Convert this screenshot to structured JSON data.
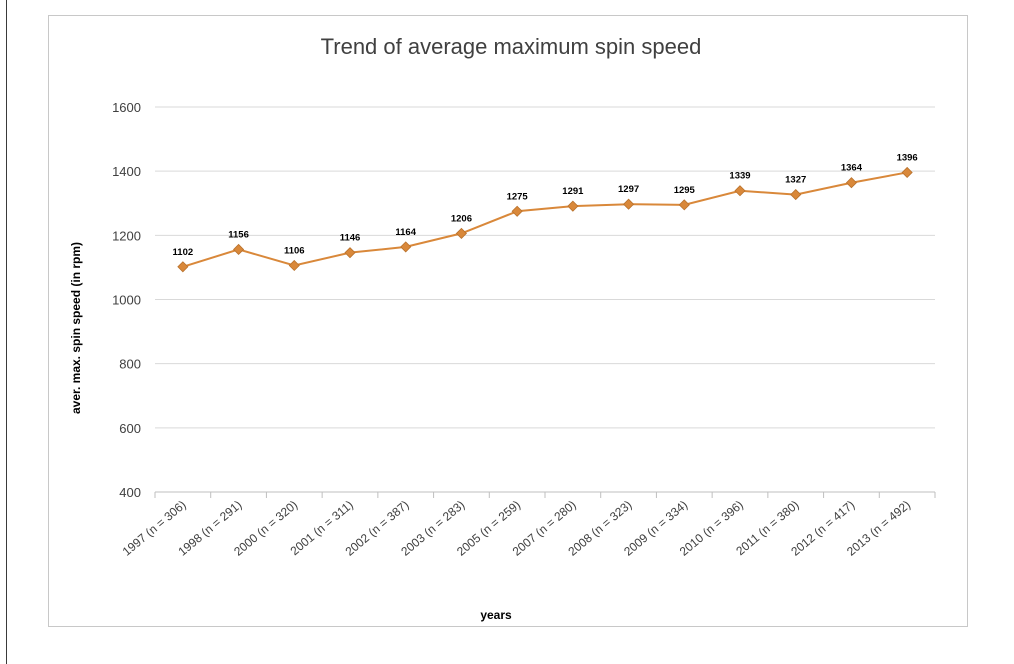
{
  "chart_data": {
    "type": "line",
    "title": "Trend of average maximum spin speed",
    "xlabel": "years",
    "ylabel": "aver. max. spin speed (in rpm)",
    "ylim": [
      400,
      1600
    ],
    "yticks": [
      "400",
      "600",
      "800",
      "1000",
      "1200",
      "1400",
      "1600"
    ],
    "grid": true,
    "categories": [
      "1997 (n = 306)",
      "1998 (n = 291)",
      "2000 (n = 320)",
      "2001 (n = 311)",
      "2002 (n = 387)",
      "2003 (n = 283)",
      "2005 (n = 259)",
      "2007 (n = 280)",
      "2008 (n = 323)",
      "2009 (n = 334)",
      "2010 (n = 396)",
      "2011 (n = 380)",
      "2012 (n = 417)",
      "2013 (n = 492)"
    ],
    "series": [
      {
        "values": [
          1102,
          1156,
          1106,
          1146,
          1164,
          1206,
          1275,
          1291,
          1297,
          1295,
          1339,
          1327,
          1364,
          1396
        ],
        "color": "#d9883a"
      }
    ]
  }
}
